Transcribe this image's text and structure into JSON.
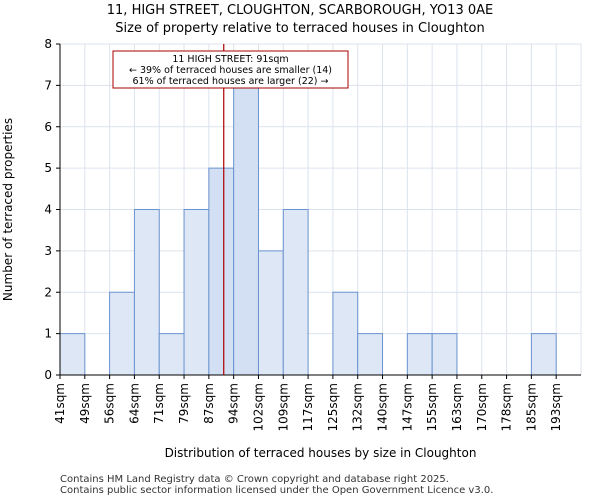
{
  "title_line1": "11, HIGH STREET, CLOUGHTON, SCARBOROUGH, YO13 0AE",
  "title_line2": "Size of property relative to terraced houses in Cloughton",
  "footer_line1": "Contains HM Land Registry data © Crown copyright and database right 2025.",
  "footer_line2": "Contains public sector information licensed under the Open Government Licence v3.0.",
  "chart_data": {
    "type": "bar",
    "title": "Size of property relative to terraced houses in Cloughton",
    "xlabel": "Distribution of terraced houses by size in Cloughton",
    "ylabel": "Number of terraced properties",
    "categories": [
      "41sqm",
      "49sqm",
      "56sqm",
      "64sqm",
      "71sqm",
      "79sqm",
      "87sqm",
      "94sqm",
      "102sqm",
      "109sqm",
      "117sqm",
      "125sqm",
      "132sqm",
      "140sqm",
      "147sqm",
      "155sqm",
      "163sqm",
      "170sqm",
      "178sqm",
      "185sqm",
      "193sqm"
    ],
    "values": [
      1,
      0,
      2,
      4,
      1,
      4,
      5,
      7,
      3,
      4,
      0,
      2,
      1,
      0,
      1,
      1,
      0,
      0,
      0,
      1,
      0
    ],
    "highlight_bins": [
      6,
      7
    ],
    "ylim": [
      0,
      8
    ],
    "yticks": [
      0,
      1,
      2,
      3,
      4,
      5,
      6,
      7,
      8
    ],
    "grid": true,
    "marker": {
      "value_sqm": 91,
      "position_bins": 6.6,
      "color": "#aa0000"
    },
    "annotation": [
      "11 HIGH STREET: 91sqm",
      "← 39% of terraced houses are smaller (14)",
      "61% of terraced houses are larger (22) →"
    ],
    "colors": {
      "bar_fill": "#dde7f6",
      "bar_highlight": "#d3e0f3",
      "bar_edge": "#6b93cf",
      "grid": "#dce3ee",
      "marker": "#aa0000"
    }
  }
}
